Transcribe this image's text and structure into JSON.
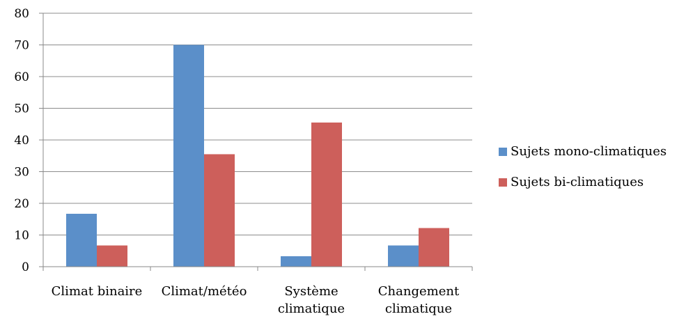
{
  "chart_data": {
    "type": "bar",
    "categories": [
      [
        "Climat binaire"
      ],
      [
        "Climat/météo"
      ],
      [
        "Système",
        "climatique"
      ],
      [
        "Changement",
        "climatique"
      ]
    ],
    "series": [
      {
        "name": "Sujets mono-climatiques",
        "color": "#5b8fc9",
        "values": [
          16.7,
          70,
          3.3,
          6.7
        ]
      },
      {
        "name": "Sujets bi-climatiques",
        "color": "#cd5f5b",
        "values": [
          6.7,
          35.5,
          45.5,
          12.2
        ]
      }
    ],
    "yticks": [
      "0",
      "10",
      "20",
      "30",
      "40",
      "50",
      "60",
      "70",
      "80"
    ],
    "ylim": [
      0,
      80
    ],
    "grid": true,
    "legend": "right"
  }
}
